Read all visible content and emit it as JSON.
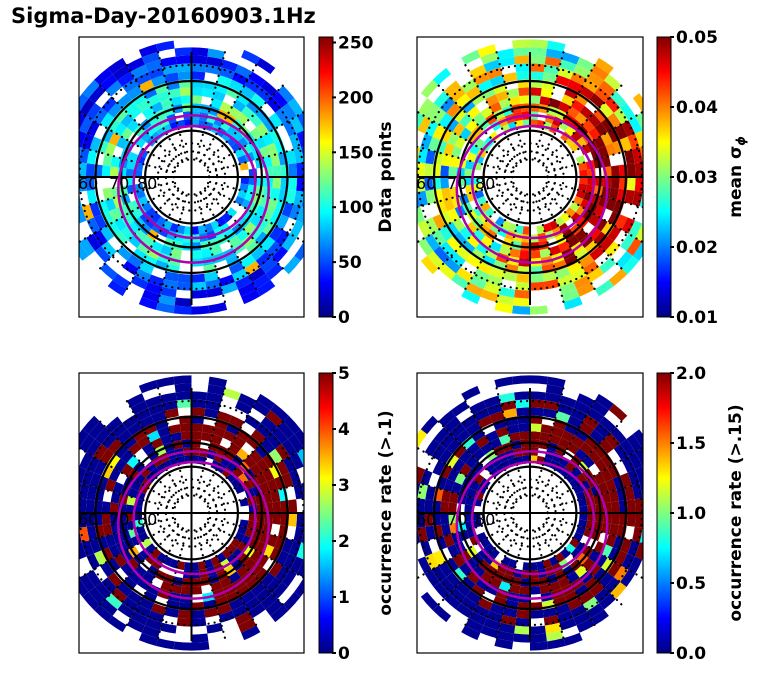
{
  "figure": {
    "title": "Sigma-Day-20160903.1Hz"
  },
  "colormap": "jet",
  "jet_stops": [
    "#00007f",
    "#0000ff",
    "#007fff",
    "#00ffff",
    "#7fff7f",
    "#ffff00",
    "#ff7f00",
    "#ff0000",
    "#7f0000"
  ],
  "ring_color": "#000000",
  "oval_color": "#b000b0",
  "chart_data": [
    {
      "type": "heatmap",
      "projection": "polar (magnetic latitude / MLT)",
      "id": "data-points",
      "lat_labels": [
        "60",
        "70",
        "80"
      ],
      "colorbar": {
        "label": "Data points",
        "min": 0,
        "max": 255,
        "ticks": [
          "0",
          "50",
          "100",
          "150",
          "200",
          "250"
        ],
        "tick_values": [
          0,
          50,
          100,
          150,
          200,
          250
        ]
      },
      "dominant_value_fraction": 0.18,
      "hot_spot_fraction": 0.7
    },
    {
      "type": "heatmap",
      "projection": "polar (magnetic latitude / MLT)",
      "id": "mean-sigma-phi",
      "lat_labels": [
        "60",
        "70",
        "80"
      ],
      "colorbar": {
        "label": "mean σ",
        "label_sub": "ϕ",
        "min": 0.01,
        "max": 0.05,
        "ticks": [
          "0.01",
          "0.02",
          "0.03",
          "0.04",
          "0.05"
        ],
        "tick_values": [
          0.01,
          0.02,
          0.03,
          0.04,
          0.05
        ]
      },
      "dominant_value_fraction": 0.75,
      "hot_spot_fraction": 1.0
    },
    {
      "type": "heatmap",
      "projection": "polar (magnetic latitude / MLT)",
      "id": "occurrence-rate-01",
      "lat_labels": [
        "60",
        "70",
        "80"
      ],
      "colorbar": {
        "label": "occurrence rate (>.1)",
        "min": 0,
        "max": 5,
        "ticks": [
          "0",
          "1",
          "2",
          "3",
          "4",
          "5"
        ],
        "tick_values": [
          0,
          1,
          2,
          3,
          4,
          5
        ]
      },
      "dominant_value_fraction": 0.02,
      "hot_spot_fraction": 1.0
    },
    {
      "type": "heatmap",
      "projection": "polar (magnetic latitude / MLT)",
      "id": "occurrence-rate-015",
      "lat_labels": [
        "60",
        "70",
        "80"
      ],
      "colorbar": {
        "label": "occurrence rate (>.15)",
        "min": 0.0,
        "max": 2.0,
        "ticks": [
          "0.0",
          "0.5",
          "1.0",
          "1.5",
          "2.0"
        ],
        "tick_values": [
          0,
          0.5,
          1.0,
          1.5,
          2.0
        ]
      },
      "dominant_value_fraction": 0.02,
      "hot_spot_fraction": 1.0
    }
  ]
}
